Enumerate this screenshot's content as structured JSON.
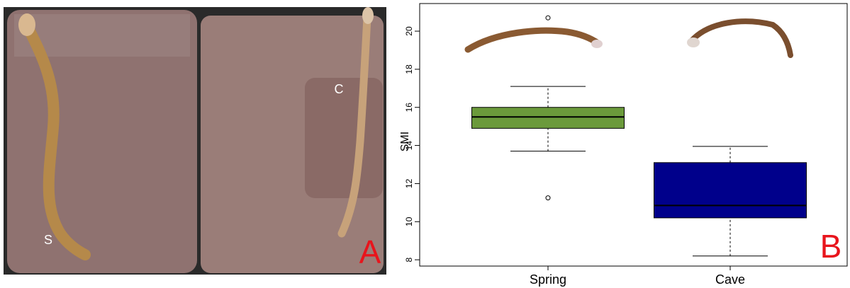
{
  "photo": {
    "label_s": "S",
    "label_c": "C",
    "panel_label": "A"
  },
  "chart_data": {
    "type": "box",
    "panel_label": "B",
    "y_label": "SMI",
    "categories": [
      "Spring",
      "Cave"
    ],
    "boxes": [
      {
        "color": "#6b9a3b",
        "whislo": 13.7,
        "q1": 14.9,
        "med": 15.5,
        "q3": 16.0,
        "whishi": 17.1,
        "fliers": [
          20.7,
          11.25
        ]
      },
      {
        "color": "#00008b",
        "whislo": 8.2,
        "q1": 10.2,
        "med": 10.85,
        "q3": 13.1,
        "whishi": 13.95,
        "fliers": []
      }
    ],
    "ylim": [
      7.67,
      21.45
    ],
    "yticks": [
      8,
      10,
      12,
      14,
      16,
      18,
      20
    ]
  }
}
